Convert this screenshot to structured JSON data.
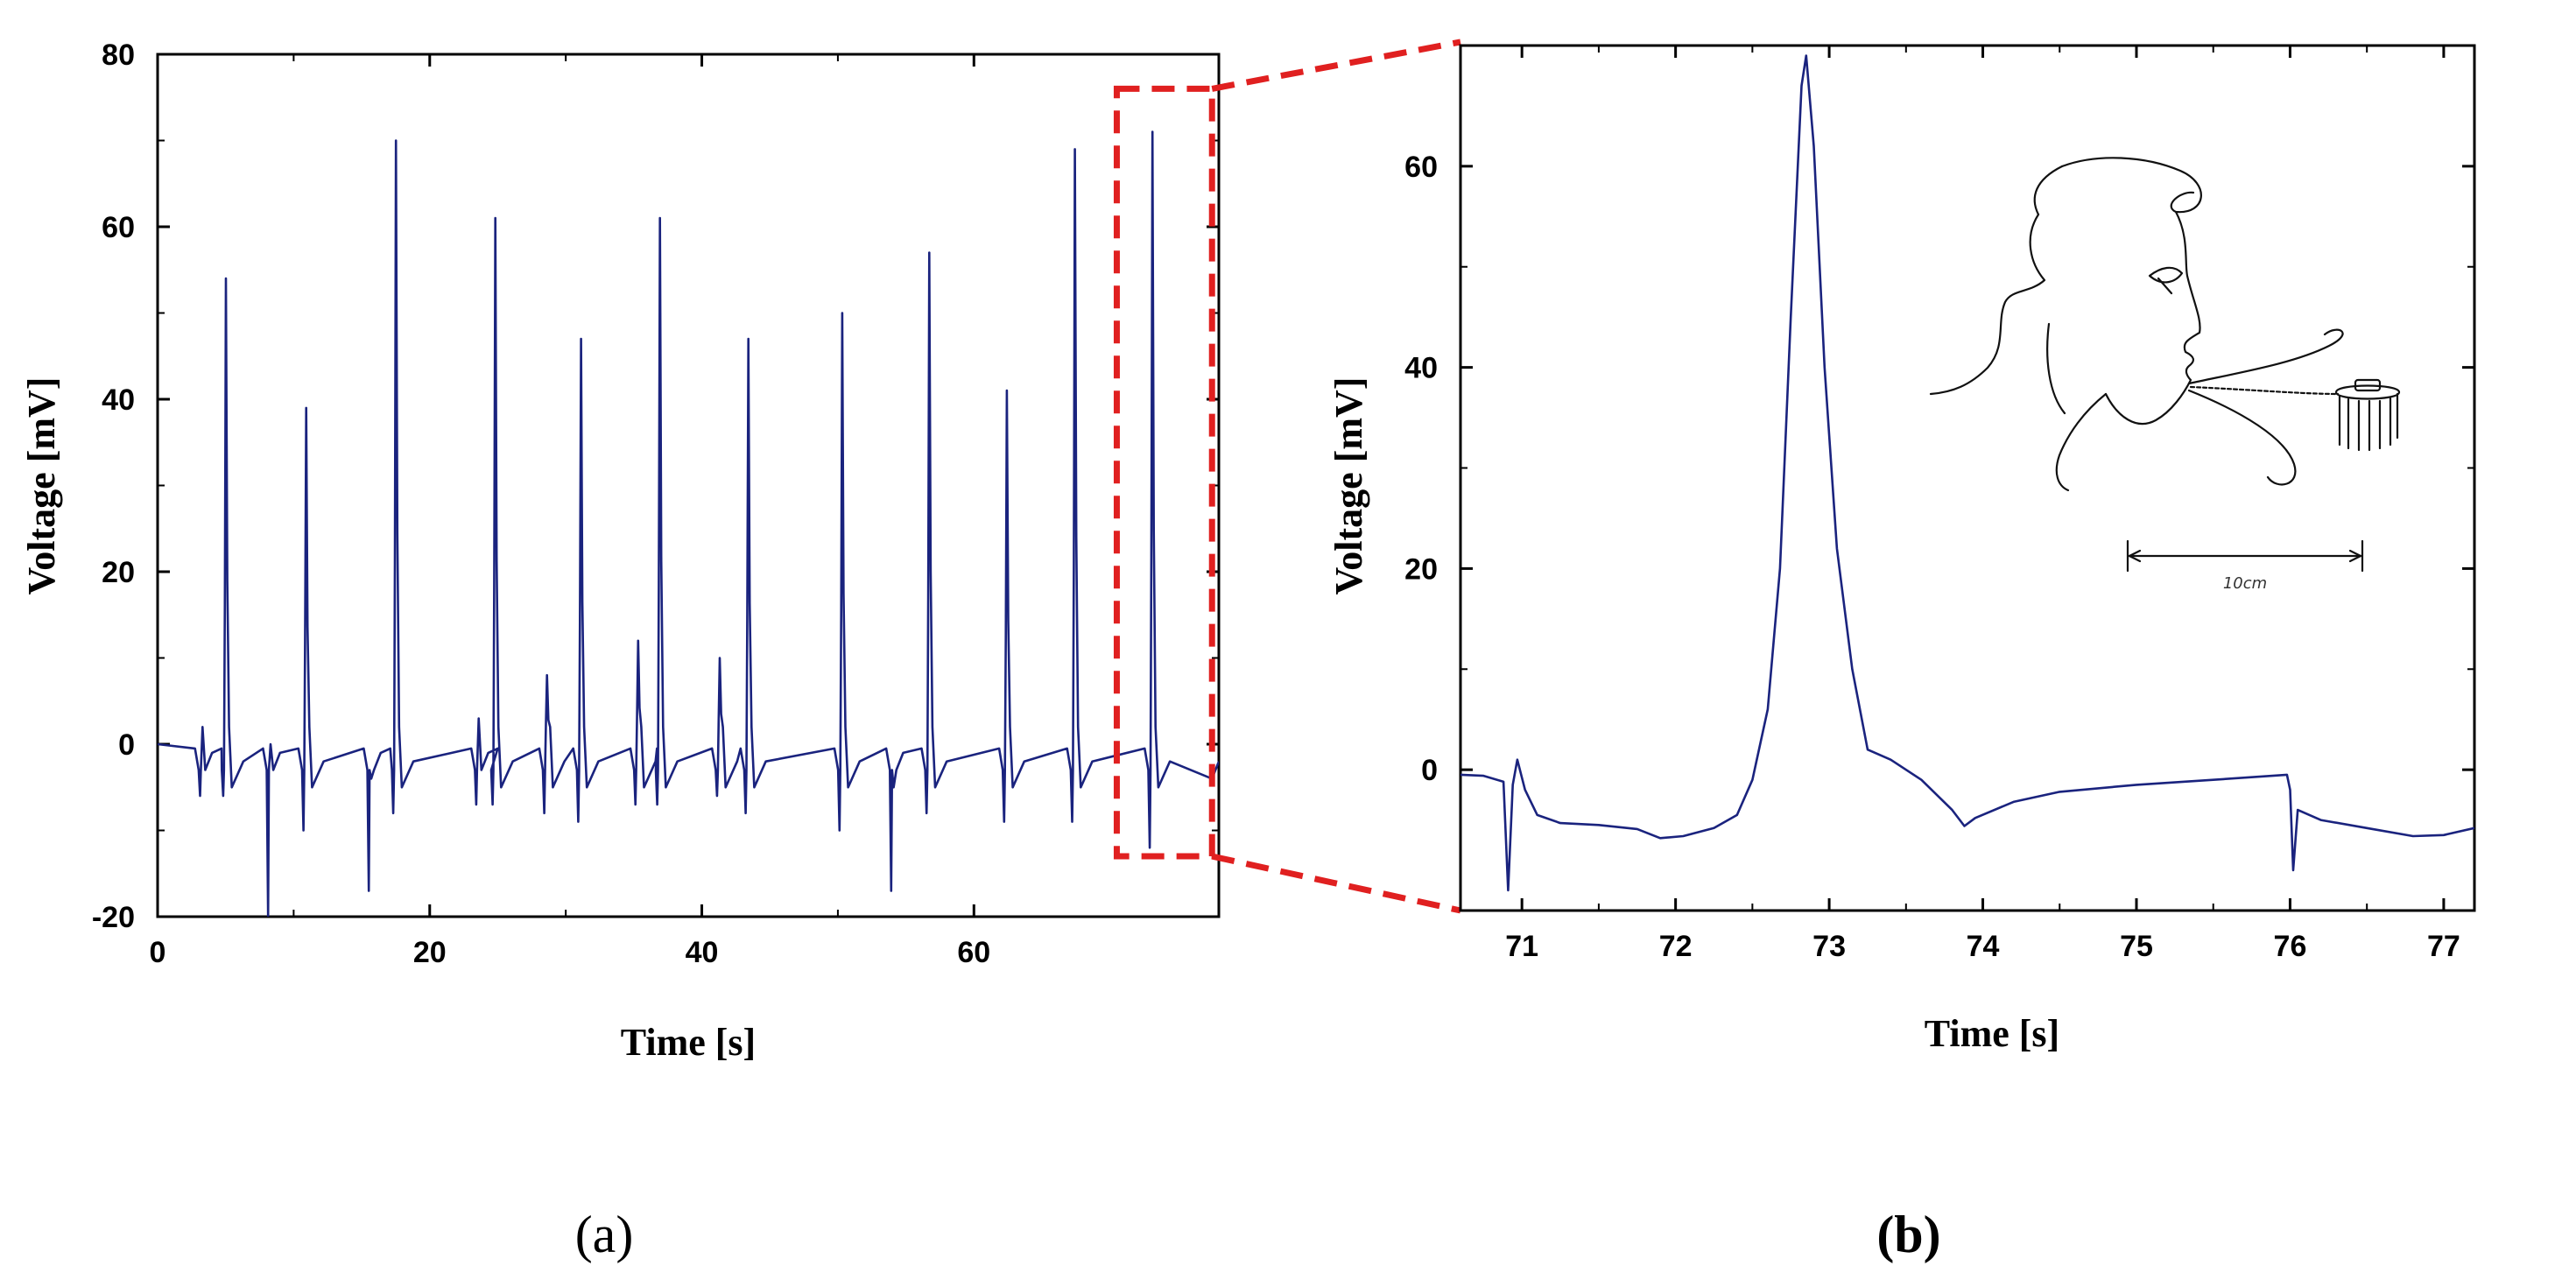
{
  "colors": {
    "trace": "#1a237e",
    "zoom_box": "#e02020",
    "axis": "#000000",
    "sketch": "#111111"
  },
  "chart_data": [
    {
      "panel": "(a)",
      "type": "line",
      "title": "",
      "xlabel": "Time [s]",
      "ylabel": "Voltage [mV]",
      "xlim": [
        0,
        78
      ],
      "ylim": [
        -20,
        80
      ],
      "xticks": [
        0,
        20,
        40,
        60
      ],
      "yticks": [
        -20,
        0,
        20,
        40,
        60,
        80
      ],
      "grid": false,
      "baseline": 0,
      "spikes": [
        {
          "t": 3.2,
          "peak": 2,
          "trough": -6
        },
        {
          "t": 4.9,
          "peak": 54,
          "trough": -6
        },
        {
          "t": 10.8,
          "peak": 39,
          "trough": -10
        },
        {
          "t": 8.2,
          "peak": 0,
          "trough": -20
        },
        {
          "t": 15.6,
          "peak": -4,
          "trough": -17
        },
        {
          "t": 17.4,
          "peak": 70,
          "trough": -8
        },
        {
          "t": 23.5,
          "peak": 3,
          "trough": -7
        },
        {
          "t": 24.7,
          "peak": 61,
          "trough": -7
        },
        {
          "t": 28.5,
          "peak": 8,
          "trough": -8
        },
        {
          "t": 31.0,
          "peak": 47,
          "trough": -9
        },
        {
          "t": 35.2,
          "peak": 12,
          "trough": -7
        },
        {
          "t": 36.8,
          "peak": 61,
          "trough": -7
        },
        {
          "t": 41.2,
          "peak": 10,
          "trough": -6
        },
        {
          "t": 43.3,
          "peak": 47,
          "trough": -8
        },
        {
          "t": 50.2,
          "peak": 50,
          "trough": -10
        },
        {
          "t": 54.0,
          "peak": -5,
          "trough": -17
        },
        {
          "t": 56.6,
          "peak": 57,
          "trough": -8
        },
        {
          "t": 62.3,
          "peak": 41,
          "trough": -9
        },
        {
          "t": 67.3,
          "peak": 69,
          "trough": -9
        },
        {
          "t": 73.0,
          "peak": 71,
          "trough": -12
        }
      ],
      "zoom_region": {
        "x": [
          70.5,
          77.5
        ],
        "y": [
          -13,
          76
        ]
      }
    },
    {
      "panel": "(b)",
      "type": "line",
      "title": "",
      "xlabel": "Time [s]",
      "ylabel": "Voltage [mV]",
      "xlim": [
        70.6,
        77.2
      ],
      "ylim": [
        -14,
        72
      ],
      "xticks": [
        71,
        72,
        73,
        74,
        75,
        76,
        77
      ],
      "yticks": [
        0,
        20,
        40,
        60
      ],
      "grid": false,
      "points": [
        [
          70.6,
          -0.5
        ],
        [
          70.75,
          -0.6
        ],
        [
          70.88,
          -1.2
        ],
        [
          70.91,
          -12.0
        ],
        [
          70.94,
          -1.5
        ],
        [
          70.97,
          1.0
        ],
        [
          71.02,
          -2.0
        ],
        [
          71.1,
          -4.5
        ],
        [
          71.25,
          -5.3
        ],
        [
          71.5,
          -5.5
        ],
        [
          71.75,
          -5.9
        ],
        [
          71.9,
          -6.8
        ],
        [
          72.05,
          -6.6
        ],
        [
          72.25,
          -5.8
        ],
        [
          72.4,
          -4.5
        ],
        [
          72.5,
          -1.0
        ],
        [
          72.6,
          6.0
        ],
        [
          72.68,
          20.0
        ],
        [
          72.75,
          45.0
        ],
        [
          72.82,
          68.0
        ],
        [
          72.85,
          71.0
        ],
        [
          72.9,
          62.0
        ],
        [
          72.97,
          40.0
        ],
        [
          73.05,
          22.0
        ],
        [
          73.15,
          10.0
        ],
        [
          73.25,
          2.0
        ],
        [
          73.4,
          1.0
        ],
        [
          73.6,
          -1.0
        ],
        [
          73.8,
          -4.0
        ],
        [
          73.88,
          -5.6
        ],
        [
          73.95,
          -4.8
        ],
        [
          74.2,
          -3.2
        ],
        [
          74.5,
          -2.2
        ],
        [
          75.0,
          -1.5
        ],
        [
          75.5,
          -1.0
        ],
        [
          75.98,
          -0.5
        ],
        [
          76.0,
          -2.0
        ],
        [
          76.02,
          -10.0
        ],
        [
          76.05,
          -4.0
        ],
        [
          76.2,
          -5.0
        ],
        [
          76.5,
          -5.8
        ],
        [
          76.8,
          -6.6
        ],
        [
          77.0,
          -6.5
        ],
        [
          77.2,
          -5.8
        ]
      ],
      "inset": {
        "description": "sketch of a person blowing air toward a sensor",
        "scale_label": "10cm"
      }
    }
  ]
}
